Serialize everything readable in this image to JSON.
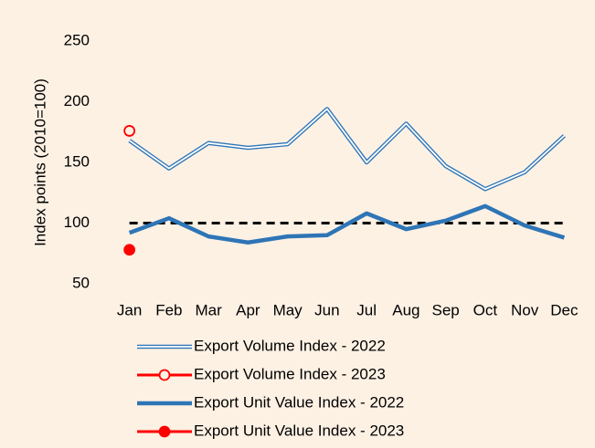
{
  "chart_data": {
    "type": "line",
    "y_label": "Index points (2010=100)",
    "categories": [
      "Jan",
      "Feb",
      "Mar",
      "Apr",
      "May",
      "Jun",
      "Jul",
      "Aug",
      "Sep",
      "Oct",
      "Nov",
      "Dec"
    ],
    "series": [
      {
        "name": "Export Volume Index - 2022",
        "color": "#2e75b6",
        "style": "double",
        "values": [
          168,
          145,
          166,
          162,
          165,
          194,
          150,
          182,
          147,
          128,
          142,
          172
        ]
      },
      {
        "name": "Export Volume Index - 2023",
        "color": "#ff0000",
        "marker": "open",
        "values": [
          176,
          null,
          null,
          null,
          null,
          null,
          null,
          null,
          null,
          null,
          null,
          null
        ]
      },
      {
        "name": "Export Unit Value Index - 2022",
        "color": "#2e75b6",
        "style": "thick",
        "values": [
          92,
          104,
          89,
          84,
          89,
          90,
          108,
          95,
          102,
          114,
          98,
          88
        ]
      },
      {
        "name": "Export Unit Value Index - 2023",
        "color": "#ff0000",
        "marker": "filled",
        "values": [
          78,
          null,
          null,
          null,
          null,
          null,
          null,
          null,
          null,
          null,
          null,
          null
        ]
      }
    ],
    "reference_line": 100,
    "ylim": [
      50,
      250
    ],
    "yticks": [
      50,
      100,
      150,
      200,
      250
    ],
    "grid": false
  }
}
